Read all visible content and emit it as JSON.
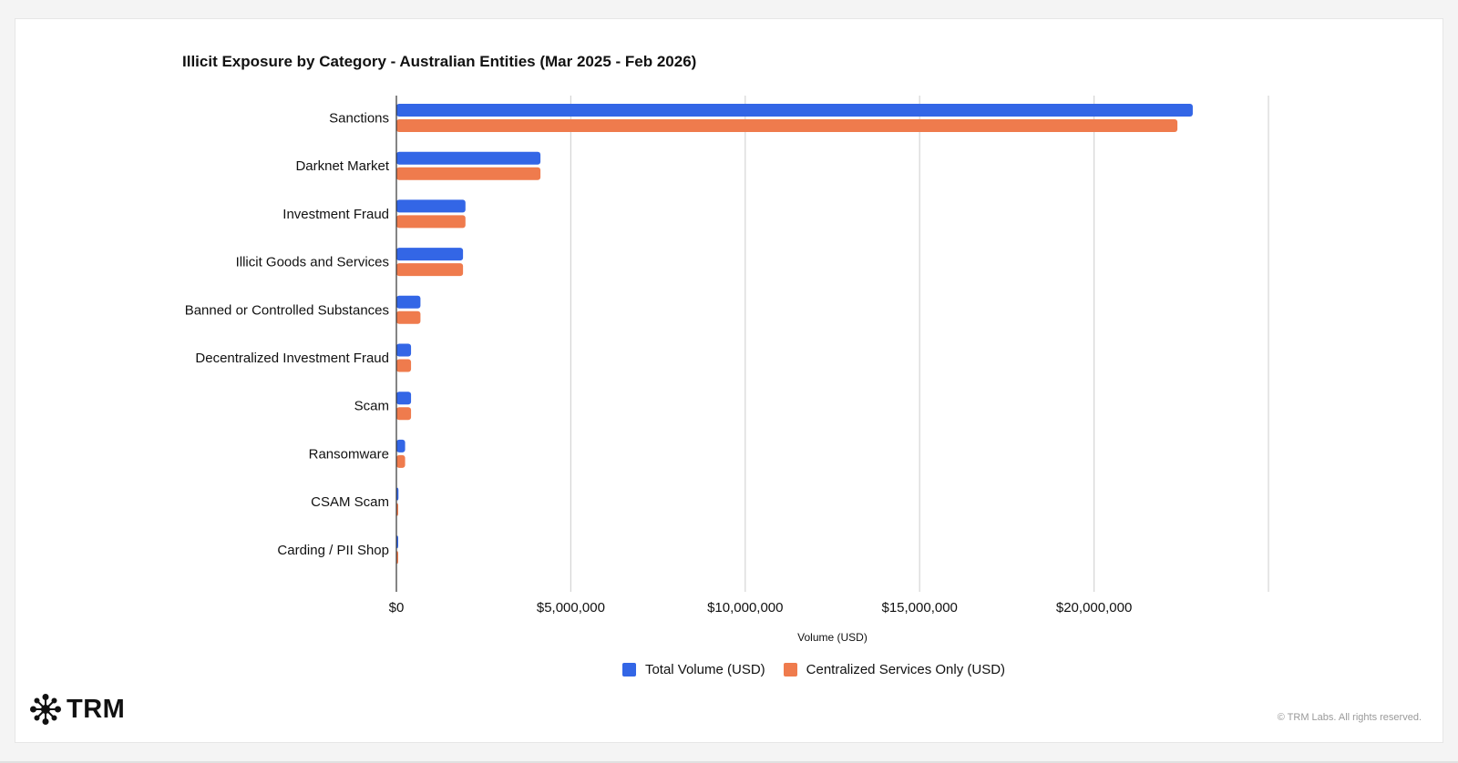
{
  "chart_data": {
    "type": "bar",
    "orientation": "horizontal",
    "title": "Illicit Exposure by Category - Australian Entities (Mar 2025 - Feb 2026)",
    "xlabel": "Volume (USD)",
    "ylabel": "",
    "xlim": [
      0,
      25000000
    ],
    "xticks": [
      0,
      5000000,
      10000000,
      15000000,
      20000000
    ],
    "xtick_labels": [
      "$0",
      "$5,000,000",
      "$10,000,000",
      "$15,000,000",
      "$20,000,000"
    ],
    "categories": [
      "Sanctions",
      "Darknet Market",
      "Investment Fraud",
      "Illicit Goods and Services",
      "Banned or Controlled Substances",
      "Decentralized Investment Fraud",
      "Scam",
      "Ransomware",
      "CSAM Scam",
      "Carding / PII Shop"
    ],
    "series": [
      {
        "name": "Total Volume (USD)",
        "color": "#3366e6",
        "values": [
          22830000,
          4130000,
          1980000,
          1910000,
          690000,
          420000,
          420000,
          250000,
          60000,
          40000
        ]
      },
      {
        "name": "Centralized Services Only (USD)",
        "color": "#ef7b4d",
        "values": [
          22390000,
          4130000,
          1980000,
          1910000,
          690000,
          420000,
          420000,
          250000,
          50000,
          40000
        ]
      }
    ],
    "grid": true,
    "legend_position": "bottom"
  },
  "legend": {
    "items": [
      {
        "label": "Total Volume (USD)",
        "color": "#3366e6"
      },
      {
        "label": "Centralized Services Only (USD)",
        "color": "#ef7b4d"
      }
    ]
  },
  "branding": {
    "logo_text": "TRM",
    "copyright": "© TRM Labs. All rights reserved."
  }
}
